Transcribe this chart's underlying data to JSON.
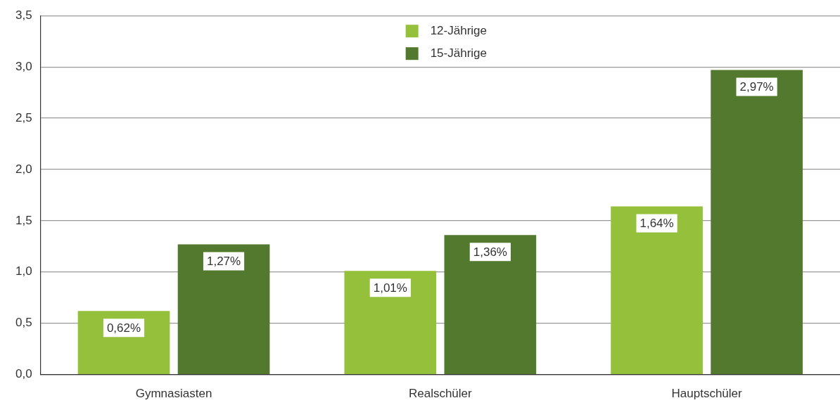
{
  "chart_data": {
    "type": "bar",
    "categories": [
      "Gymnasiasten",
      "Realschüler",
      "Hauptschüler"
    ],
    "series": [
      {
        "name": "12-Jährige",
        "color": "#95c03c",
        "values": [
          0.62,
          1.01,
          1.64
        ],
        "value_labels": [
          "0,62%",
          "1,01%",
          "1,64%"
        ]
      },
      {
        "name": "15-Jährige",
        "color": "#52792d",
        "values": [
          1.27,
          1.36,
          2.97
        ],
        "value_labels": [
          "1,27%",
          "1,36%",
          "2,97%"
        ]
      }
    ],
    "ylim": [
      0,
      3.5
    ],
    "yticks": [
      {
        "value": 0,
        "label": "0,0"
      },
      {
        "value": 0.5,
        "label": "0,5"
      },
      {
        "value": 1,
        "label": "1,0"
      },
      {
        "value": 1.5,
        "label": "1,5"
      },
      {
        "value": 2,
        "label": "2,0"
      },
      {
        "value": 2.5,
        "label": "2,5"
      },
      {
        "value": 3,
        "label": "3,0"
      },
      {
        "value": 3.5,
        "label": "3,5"
      }
    ],
    "grid": "y",
    "legend": "top"
  }
}
